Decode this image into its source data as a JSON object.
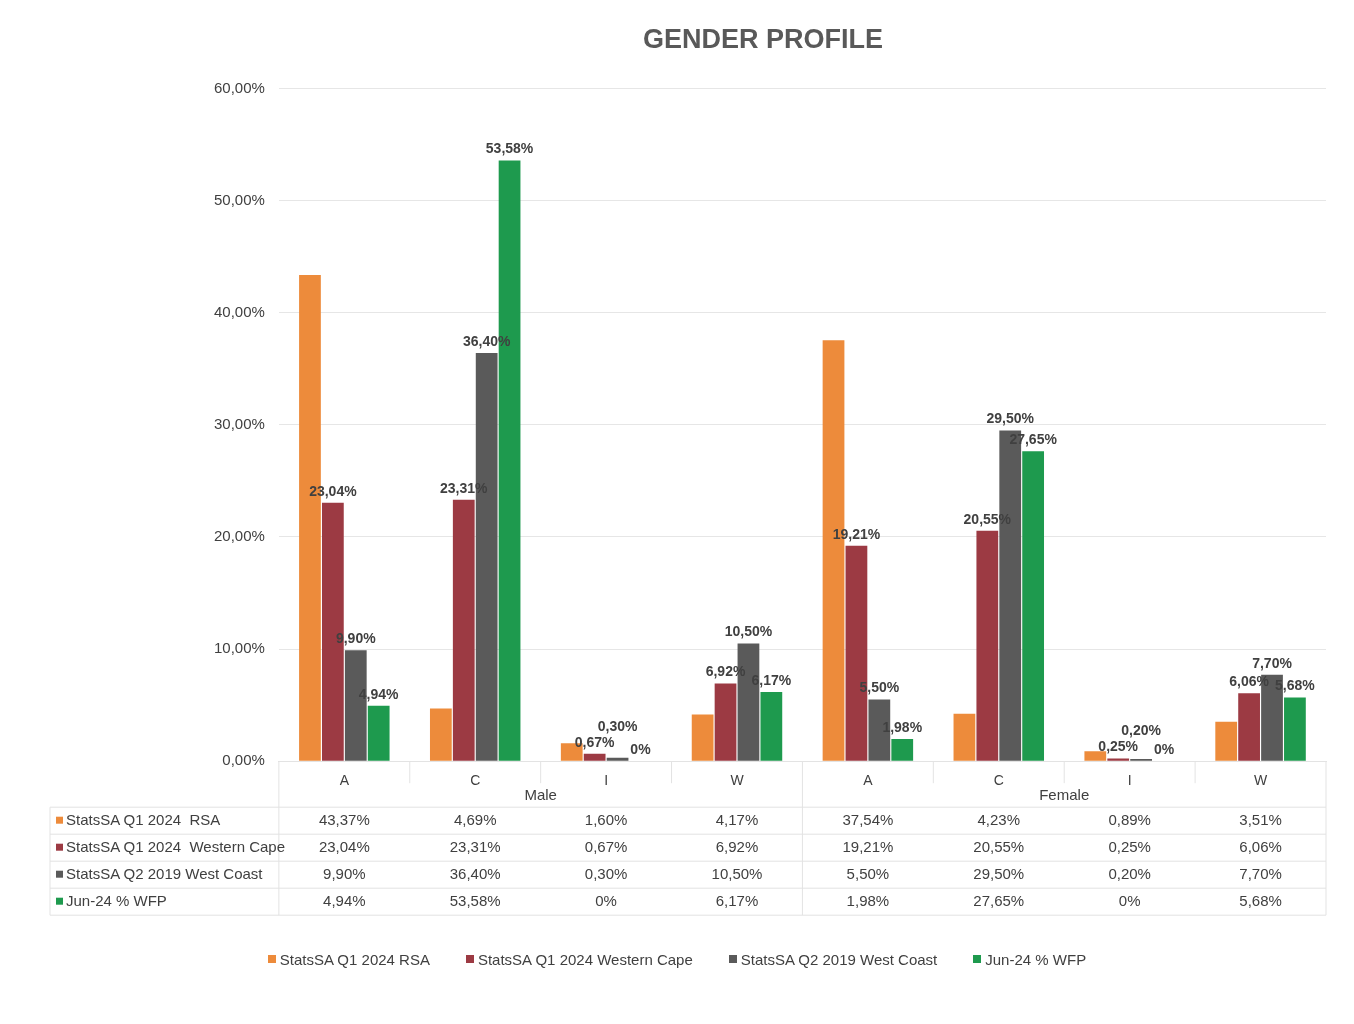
{
  "chart_data": {
    "type": "bar",
    "title": "GENDER PROFILE",
    "categories": [
      "A",
      "C",
      "I",
      "W",
      "A",
      "C",
      "I",
      "W"
    ],
    "annotations": [
      "Male",
      "Female"
    ],
    "series": [
      {
        "name": "StatsSA Q1 2024  RSA",
        "color": "#ed8b3b",
        "values": [
          43.37,
          4.69,
          1.6,
          4.17,
          37.54,
          4.23,
          0.89,
          3.51
        ],
        "value_labels": [
          "43,37%",
          "4,69%",
          "1,60%",
          "4,17%",
          "37,54%",
          "4,23%",
          "0,89%",
          "3,51%"
        ],
        "data_labels": false
      },
      {
        "name": "StatsSA Q1 2024  Western Cape",
        "color": "#9c3a43",
        "values": [
          23.04,
          23.31,
          0.67,
          6.92,
          19.21,
          20.55,
          0.25,
          6.06
        ],
        "value_labels": [
          "23,04%",
          "23,31%",
          "0,67%",
          "6,92%",
          "19,21%",
          "20,55%",
          "0,25%",
          "6,06%"
        ]
      },
      {
        "name": "StatsSA Q2 2019 West Coast",
        "color": "#5a5a5a",
        "values": [
          9.9,
          36.4,
          0.3,
          10.5,
          5.5,
          29.5,
          0.2,
          7.7
        ],
        "value_labels": [
          "9,90%",
          "36,40%",
          "0,30%",
          "10,50%",
          "5,50%",
          "29,50%",
          "0,20%",
          "7,70%"
        ]
      },
      {
        "name": "Jun-24 % WFP",
        "color": "#1e9a4e",
        "values": [
          4.94,
          53.58,
          0,
          6.17,
          1.98,
          27.65,
          0,
          5.68
        ],
        "value_labels": [
          "4,94%",
          "53,58%",
          "0%",
          "6,17%",
          "1,98%",
          "27,65%",
          "0%",
          "5,68%"
        ]
      }
    ],
    "ylim": [
      0,
      60
    ],
    "yticks": [
      {
        "value": 0,
        "label": "0,00%"
      },
      {
        "value": 10,
        "label": "10,00%"
      },
      {
        "value": 20,
        "label": "20,00%"
      },
      {
        "value": 30,
        "label": "30,00%"
      },
      {
        "value": 40,
        "label": "40,00%"
      },
      {
        "value": 50,
        "label": "50,00%"
      },
      {
        "value": 60,
        "label": "60,00%"
      }
    ],
    "grid": "y",
    "legend": "bottom",
    "data_labels": true
  }
}
